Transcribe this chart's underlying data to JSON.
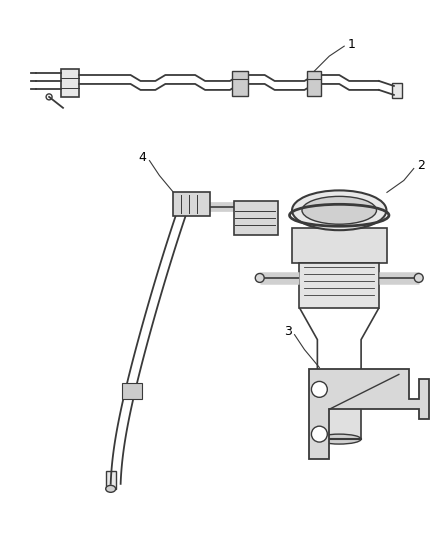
{
  "background_color": "#ffffff",
  "line_color": "#3a3a3a",
  "fig_width": 4.38,
  "fig_height": 5.33,
  "dpi": 100
}
